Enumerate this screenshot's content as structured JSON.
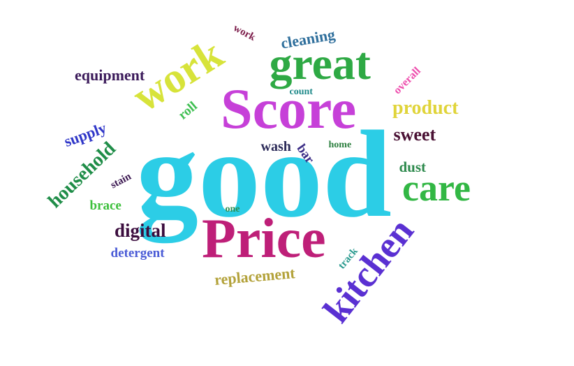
{
  "words": [
    {
      "id": "good",
      "text": "good",
      "color": "#2ccde6",
      "rotate": false
    },
    {
      "id": "score",
      "text": "Score",
      "color": "#c640d8",
      "rotate": false
    },
    {
      "id": "great",
      "text": "great",
      "color": "#2ea944",
      "rotate": false
    },
    {
      "id": "price",
      "text": "Price",
      "color": "#be1f78",
      "rotate": false
    },
    {
      "id": "work-large",
      "text": "work",
      "color": "#d7e33a",
      "rotate": true
    },
    {
      "id": "kitchen",
      "text": "kitchen",
      "color": "#5a30d2",
      "rotate": true
    },
    {
      "id": "care",
      "text": "care",
      "color": "#32b744",
      "rotate": false
    },
    {
      "id": "household",
      "text": "household",
      "color": "#1f8d48",
      "rotate": true
    },
    {
      "id": "product",
      "text": "product",
      "color": "#e0d43a",
      "rotate": false
    },
    {
      "id": "sweet",
      "text": "sweet",
      "color": "#4a1134",
      "rotate": false
    },
    {
      "id": "digital",
      "text": "digital",
      "color": "#3b0d3e",
      "rotate": false
    },
    {
      "id": "equipment",
      "text": "equipment",
      "color": "#3b1a5a",
      "rotate": false
    },
    {
      "id": "cleaning",
      "text": "cleaning",
      "color": "#2f6f9c",
      "rotate": false
    },
    {
      "id": "replacement",
      "text": "replacement",
      "color": "#b3a23a",
      "rotate": false
    },
    {
      "id": "supply",
      "text": "supply",
      "color": "#2f36c8",
      "rotate": false
    },
    {
      "id": "detergent",
      "text": "detergent",
      "color": "#4a5bd6",
      "rotate": false
    },
    {
      "id": "dust",
      "text": "dust",
      "color": "#2e8a4d",
      "rotate": false
    },
    {
      "id": "wash",
      "text": "wash",
      "color": "#2b2a58",
      "rotate": false
    },
    {
      "id": "bar",
      "text": "bar",
      "color": "#3b2d86",
      "rotate": true
    },
    {
      "id": "brace",
      "text": "brace",
      "color": "#3dc03c",
      "rotate": false
    },
    {
      "id": "roll",
      "text": "roll",
      "color": "#3fbf52",
      "rotate": true
    },
    {
      "id": "overall",
      "text": "overall",
      "color": "#ee4fae",
      "rotate": true
    },
    {
      "id": "work-small",
      "text": "work",
      "color": "#7c1c4a",
      "rotate": true
    },
    {
      "id": "stain",
      "text": "stain",
      "color": "#3a1650",
      "rotate": true
    },
    {
      "id": "track",
      "text": "track",
      "color": "#2a9a8f",
      "rotate": true
    },
    {
      "id": "home",
      "text": "home",
      "color": "#2c7f3f",
      "rotate": false
    },
    {
      "id": "count",
      "text": "count",
      "color": "#1f8a8a",
      "rotate": false
    },
    {
      "id": "one",
      "text": "one",
      "color": "#2e8e4f",
      "rotate": false
    }
  ]
}
